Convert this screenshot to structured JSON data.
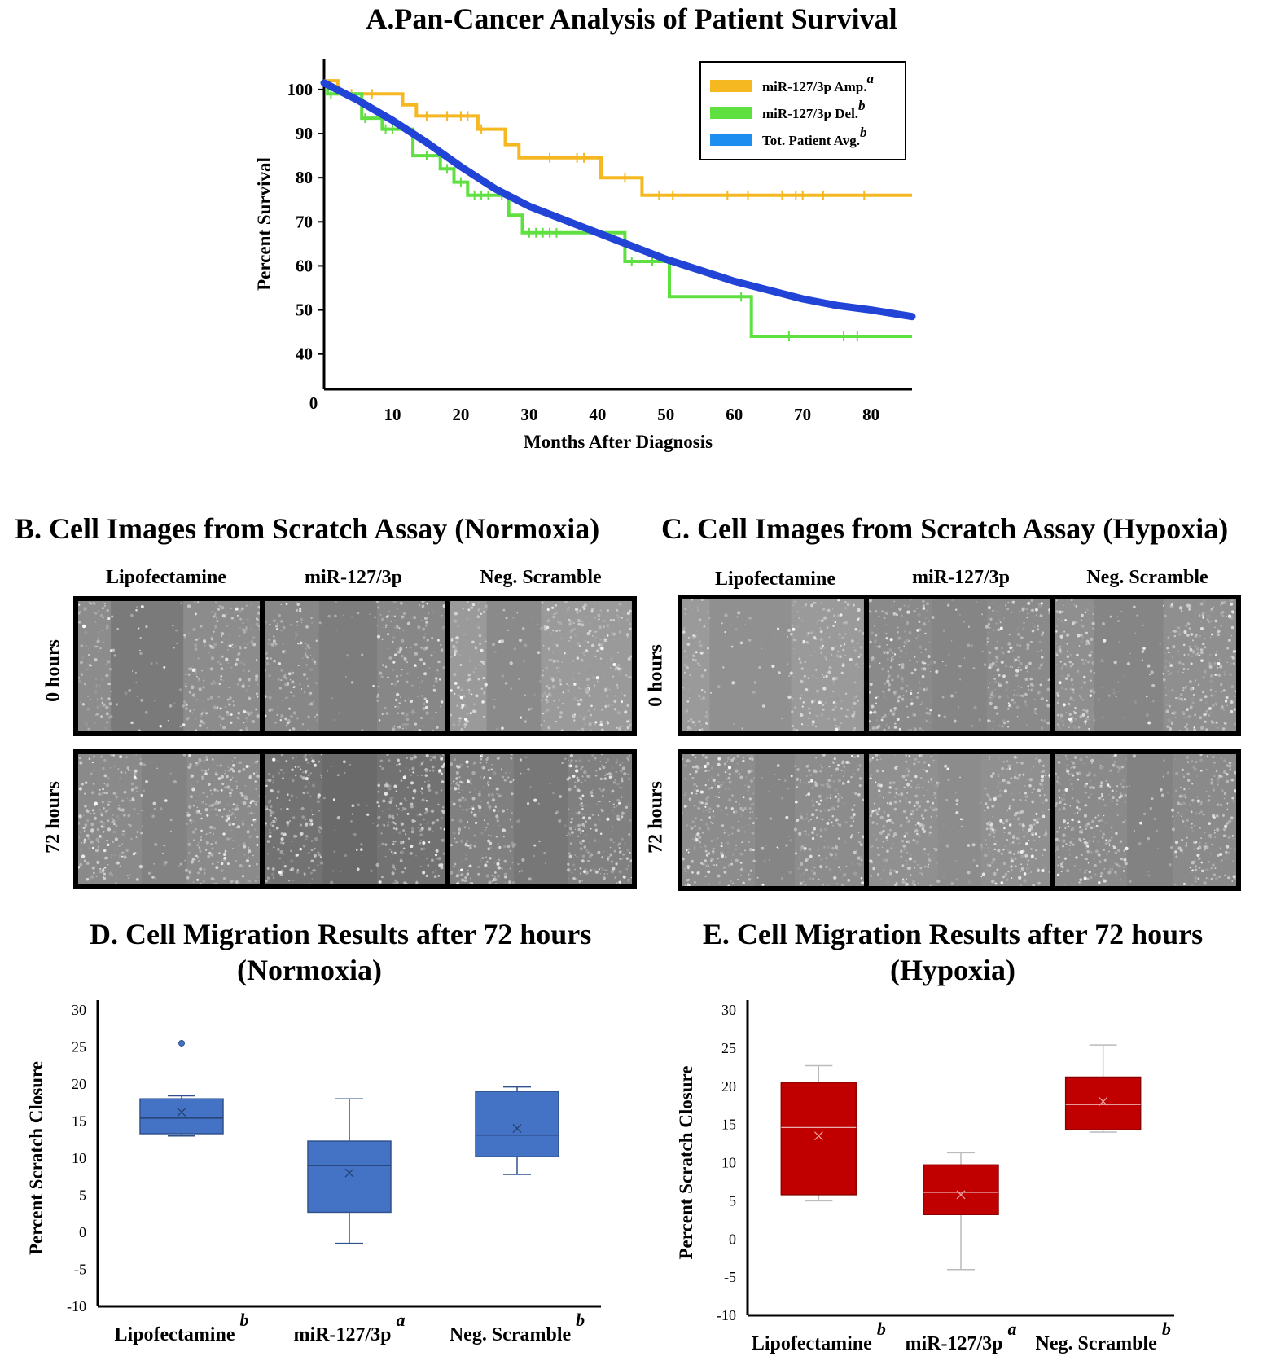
{
  "panel_a": {
    "title": "A.Pan-Cancer Analysis of Patient Survival",
    "xlabel": "Months After Diagnosis",
    "ylabel": "Percent Survival"
  },
  "panel_b": {
    "title": "B. Cell Images from Scratch Assay (Normoxia)",
    "columns": [
      "Lipofectamine",
      "miR-127/3p",
      "Neg. Scramble"
    ],
    "rows": [
      "0 hours",
      "72 hours"
    ]
  },
  "panel_c": {
    "title": "C. Cell Images from Scratch Assay (Hypoxia)",
    "columns": [
      "Lipofectamine",
      "miR-127/3p",
      "Neg. Scramble"
    ],
    "rows": [
      "0 hours",
      "72 hours"
    ]
  },
  "panel_d": {
    "title_line1": "D. Cell Migration Results after 72 hours",
    "title_line2": "(Normoxia)",
    "ylabel": "Percent Scratch Closure"
  },
  "panel_e": {
    "title_line1": "E. Cell Migration Results after 72 hours",
    "title_line2": "(Hypoxia)",
    "ylabel": "Percent Scratch Closure"
  },
  "colors": {
    "amp": "#f5b820",
    "del": "#5fe040",
    "avg": "#2144d6",
    "avg_legend": "#1e8ff0",
    "box_normoxia": "#4472c4",
    "box_normoxia_edge": "#2f528f",
    "box_hypoxia": "#c00000",
    "box_hypoxia_edge": "#8b0000"
  },
  "chart_data": [
    {
      "id": "A",
      "type": "line",
      "title": "A.Pan-Cancer Analysis of Patient Survival",
      "xlabel": "Months After Diagnosis",
      "ylabel": "Percent Survival",
      "xlim": [
        0,
        86
      ],
      "ylim": [
        32,
        107
      ],
      "x_ticks": [
        10,
        20,
        30,
        40,
        50,
        60,
        70,
        80
      ],
      "x_origin_label": "0",
      "y_ticks": [
        40,
        50,
        60,
        70,
        80,
        90,
        100
      ],
      "legend_position": "top-right",
      "series": [
        {
          "name": "miR-127/3p Amp.",
          "superscript": "a",
          "style": "step",
          "points": [
            [
              0,
              102
            ],
            [
              2,
              102
            ],
            [
              2,
              99
            ],
            [
              11.5,
              99
            ],
            [
              11.5,
              96.5
            ],
            [
              13.5,
              96.5
            ],
            [
              13.5,
              94
            ],
            [
              22.5,
              94
            ],
            [
              22.5,
              91
            ],
            [
              26.5,
              91
            ],
            [
              26.5,
              87.5
            ],
            [
              28.5,
              87.5
            ],
            [
              28.5,
              84.5
            ],
            [
              40.5,
              84.5
            ],
            [
              40.5,
              80
            ],
            [
              46.5,
              80
            ],
            [
              46.5,
              76
            ],
            [
              86,
              76
            ]
          ],
          "censor_x": [
            4,
            7,
            15,
            18,
            20,
            21,
            23,
            33,
            37,
            38,
            44,
            49,
            51,
            59,
            62,
            67,
            69,
            70,
            73,
            79
          ]
        },
        {
          "name": "miR-127/3p Del.",
          "superscript": "b",
          "style": "step",
          "points": [
            [
              0,
              101
            ],
            [
              0.5,
              101
            ],
            [
              0.5,
              99
            ],
            [
              5.5,
              99
            ],
            [
              5.5,
              93.5
            ],
            [
              8.5,
              93.5
            ],
            [
              8.5,
              91
            ],
            [
              13,
              91
            ],
            [
              13,
              85
            ],
            [
              17,
              85
            ],
            [
              17,
              82
            ],
            [
              19,
              82
            ],
            [
              19,
              79
            ],
            [
              21,
              79
            ],
            [
              21,
              76
            ],
            [
              27,
              76
            ],
            [
              27,
              71.5
            ],
            [
              29,
              71.5
            ],
            [
              29,
              67.5
            ],
            [
              44,
              67.5
            ],
            [
              44,
              61
            ],
            [
              50.5,
              61
            ],
            [
              50.5,
              53
            ],
            [
              62.5,
              53
            ],
            [
              62.5,
              44
            ],
            [
              86,
              44
            ]
          ],
          "censor_x": [
            1,
            6,
            9,
            10,
            12,
            15,
            18,
            20,
            22,
            23,
            24,
            26,
            30,
            31,
            32,
            33,
            34,
            45,
            48,
            61,
            68,
            76,
            78
          ]
        },
        {
          "name": "Tot. Patient Avg.",
          "superscript": "b",
          "style": "smooth",
          "points": [
            [
              0,
              101.5
            ],
            [
              5,
              97.5
            ],
            [
              10,
              93
            ],
            [
              15,
              88
            ],
            [
              20,
              82.5
            ],
            [
              25,
              77.5
            ],
            [
              30,
              73.5
            ],
            [
              35,
              70.5
            ],
            [
              40,
              67.5
            ],
            [
              45,
              64.5
            ],
            [
              50,
              61.5
            ],
            [
              55,
              59
            ],
            [
              60,
              56.5
            ],
            [
              65,
              54.5
            ],
            [
              70,
              52.5
            ],
            [
              75,
              51
            ],
            [
              80,
              50
            ],
            [
              86,
              48.5
            ]
          ]
        }
      ]
    },
    {
      "id": "D",
      "type": "box",
      "title": "D. Cell Migration Results after 72 hours (Normoxia)",
      "ylabel": "Percent Scratch Closure",
      "ylim": [
        -10,
        30
      ],
      "y_ticks": [
        30,
        25,
        20,
        15,
        10,
        5,
        0,
        -5,
        -10
      ],
      "categories": [
        {
          "label": "Lipofectamine",
          "superscript": "b",
          "whisker_low": 13,
          "q1": 13.3,
          "median": 15.4,
          "q3": 18,
          "whisker_high": 18.4,
          "mean": 16.2,
          "outliers": [
            25.5
          ]
        },
        {
          "label": "miR-127/3p",
          "superscript": "a",
          "whisker_low": -1.5,
          "q1": 2.7,
          "median": 9,
          "q3": 12.3,
          "whisker_high": 18,
          "mean": 8,
          "outliers": []
        },
        {
          "label": "Neg. Scramble",
          "superscript": "b",
          "whisker_low": 7.8,
          "q1": 10.2,
          "median": 13.1,
          "q3": 19,
          "whisker_high": 19.6,
          "mean": 14,
          "outliers": []
        }
      ]
    },
    {
      "id": "E",
      "type": "box",
      "title": "E. Cell Migration Results after 72 hours (Hypoxia)",
      "ylabel": "Percent Scratch Closure",
      "ylim": [
        -10,
        30
      ],
      "y_ticks": [
        30,
        25,
        20,
        15,
        10,
        5,
        0,
        -5,
        -10
      ],
      "categories": [
        {
          "label": "Lipofectamine",
          "superscript": "b",
          "whisker_low": 5,
          "q1": 5.8,
          "median": 14.6,
          "q3": 20.5,
          "whisker_high": 22.7,
          "mean": 13.5,
          "outliers": []
        },
        {
          "label": "miR-127/3p",
          "superscript": "a",
          "whisker_low": -4,
          "q1": 3.2,
          "median": 6.1,
          "q3": 9.7,
          "whisker_high": 11.3,
          "mean": 5.8,
          "outliers": []
        },
        {
          "label": "Neg. Scramble",
          "superscript": "b",
          "whisker_low": 14,
          "q1": 14.3,
          "median": 17.6,
          "q3": 21.2,
          "whisker_high": 25.4,
          "mean": 18,
          "outliers": []
        }
      ]
    }
  ]
}
